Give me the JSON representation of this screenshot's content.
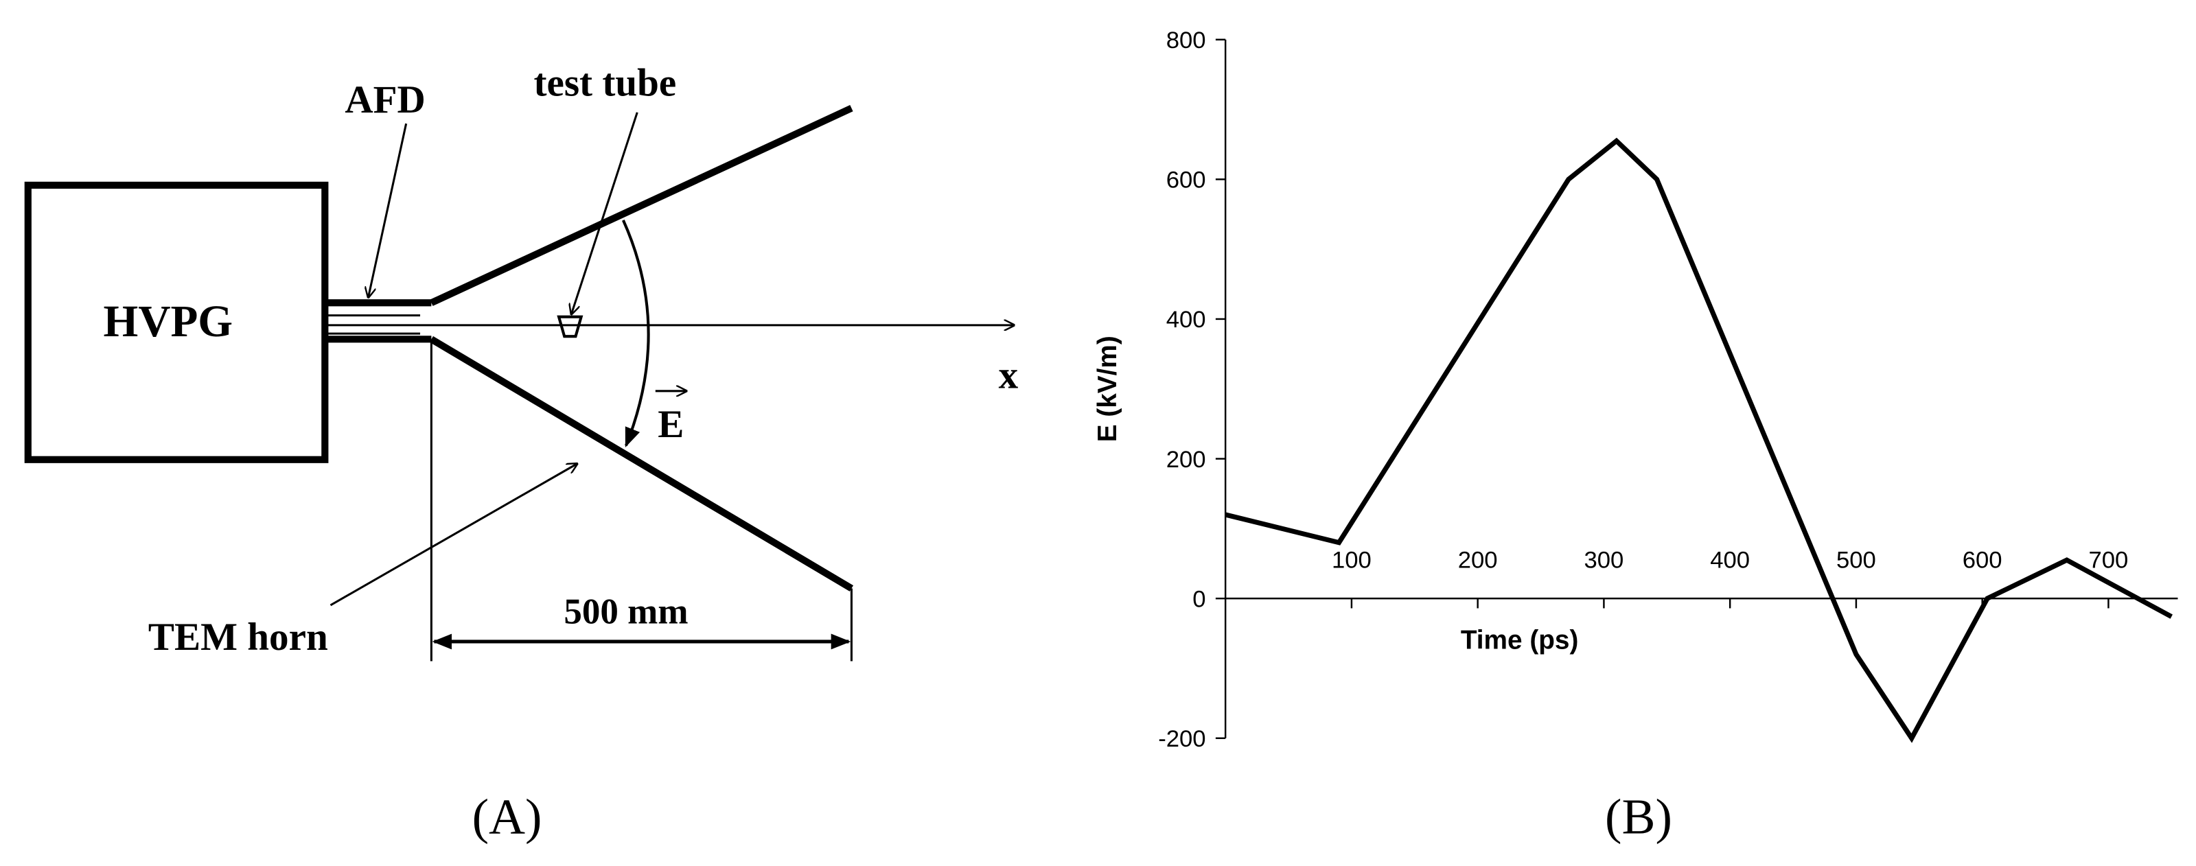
{
  "diagram": {
    "box_label": "HVPG",
    "afd_label": "AFD",
    "tube_label": "test tube",
    "axis_label": "x",
    "field_label": "E",
    "horn_label": "TEM horn",
    "dimension_label": "500 mm"
  },
  "panel_labels": [
    "(A)",
    "(B)"
  ],
  "chart_data": {
    "type": "line",
    "x_label": "Time (ps)",
    "y_label": "E (kV/m)",
    "x": [
      0,
      90,
      272,
      310,
      342,
      500,
      544,
      604,
      667,
      750
    ],
    "series": [
      {
        "name": "E",
        "color": "#000000",
        "values": [
          120,
          80,
          600,
          655,
          600,
          -80,
          -200,
          0,
          55,
          -26
        ]
      }
    ],
    "xlim": [
      0,
      755
    ],
    "ylim": [
      -200,
      800
    ],
    "xticks": [
      100,
      200,
      300,
      400,
      500,
      600,
      700
    ],
    "yticks": [
      -200,
      0,
      200,
      400,
      600,
      800
    ]
  }
}
